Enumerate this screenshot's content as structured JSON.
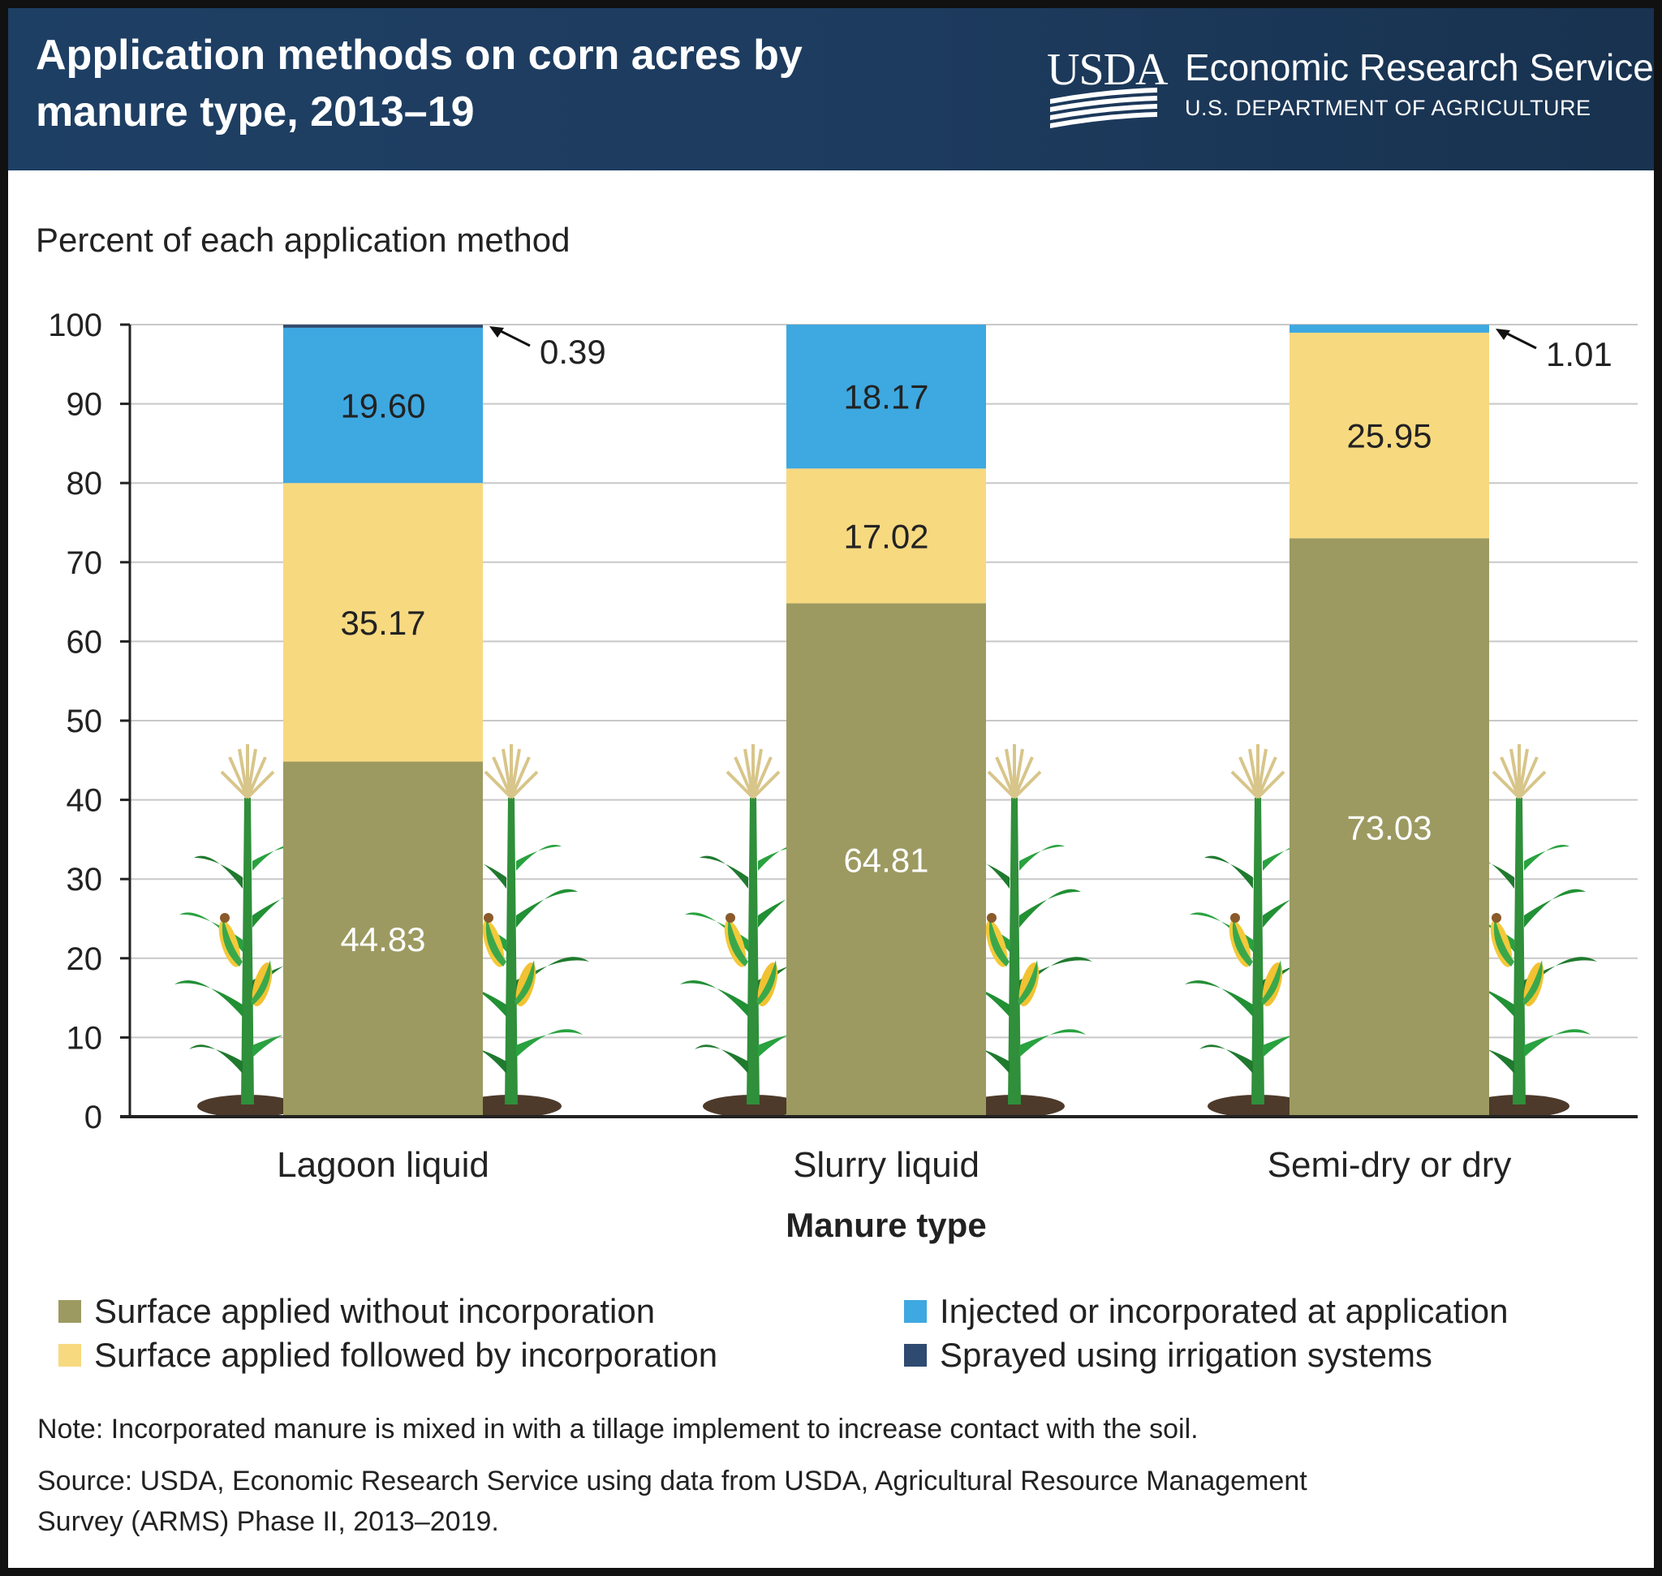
{
  "header": {
    "title_line1": "Application methods on corn acres by",
    "title_line2": "manure type, 2013–19",
    "logo_text": "USDA",
    "org_name": "Economic Research Service",
    "org_dept": "U.S. DEPARTMENT OF AGRICULTURE"
  },
  "chart_data": {
    "type": "bar",
    "stacked": true,
    "title": "Application methods on corn acres by manure type, 2013–19",
    "ylabel": "Percent of each application method",
    "xlabel": "Manure type",
    "ylim": [
      0,
      100
    ],
    "yticks": [
      0,
      10,
      20,
      30,
      40,
      50,
      60,
      70,
      80,
      90,
      100
    ],
    "grid": true,
    "categories": [
      "Lagoon liquid",
      "Slurry liquid",
      "Semi-dry or dry"
    ],
    "series": [
      {
        "name": "Surface applied without incorporation",
        "color": "#9c9a61",
        "values": [
          44.83,
          64.81,
          73.03
        ]
      },
      {
        "name": "Surface applied followed by incorporation",
        "color": "#f7d980",
        "values": [
          35.17,
          17.02,
          25.95
        ]
      },
      {
        "name": "Injected or incorporated at application",
        "color": "#3ea8e0",
        "values": [
          19.6,
          18.17,
          1.01
        ]
      },
      {
        "name": "Sprayed using irrigation systems",
        "color": "#2e4a70",
        "values": [
          0.39,
          0,
          0
        ]
      }
    ],
    "data_labels": [
      {
        "category": "Lagoon liquid",
        "series": "Surface applied without incorporation",
        "text": "44.83"
      },
      {
        "category": "Lagoon liquid",
        "series": "Surface applied followed by incorporation",
        "text": "35.17"
      },
      {
        "category": "Lagoon liquid",
        "series": "Injected or incorporated at application",
        "text": "19.60"
      },
      {
        "category": "Lagoon liquid",
        "series": "Sprayed using irrigation systems",
        "text": "0.39",
        "callout": true
      },
      {
        "category": "Slurry liquid",
        "series": "Surface applied without incorporation",
        "text": "64.81"
      },
      {
        "category": "Slurry liquid",
        "series": "Surface applied followed by incorporation",
        "text": "17.02"
      },
      {
        "category": "Slurry liquid",
        "series": "Injected or incorporated at application",
        "text": "18.17"
      },
      {
        "category": "Semi-dry or dry",
        "series": "Surface applied without incorporation",
        "text": "73.03"
      },
      {
        "category": "Semi-dry or dry",
        "series": "Surface applied followed by incorporation",
        "text": "25.95"
      },
      {
        "category": "Semi-dry or dry",
        "series": "Injected or incorporated at application",
        "text": "1.01",
        "callout": true
      }
    ],
    "legend_position": "bottom",
    "decoration": "corn-stalk-illustrations"
  },
  "footer": {
    "note": "Note: Incorporated manure is mixed in with a tillage implement to increase contact with the soil.",
    "source_line1": "Source: USDA, Economic Research Service using data from USDA, Agricultural Resource Management",
    "source_line2": "Survey (ARMS) Phase II, 2013–2019."
  }
}
